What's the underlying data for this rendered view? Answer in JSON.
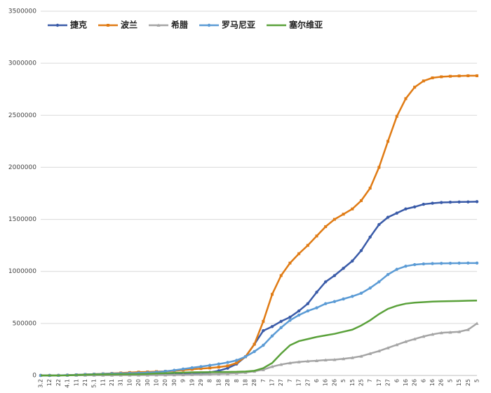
{
  "chart_data": {
    "type": "line",
    "categories": [
      "3.2",
      "12",
      "22",
      "4.1",
      "11",
      "21",
      "5.1",
      "11",
      "21",
      "31",
      "10",
      "20",
      "30",
      "10",
      "20",
      "30",
      "9",
      "19",
      "29",
      "8",
      "18",
      "28",
      "8",
      "18",
      "28",
      "7",
      "17",
      "27",
      "7",
      "17",
      "27",
      "6",
      "16",
      "26",
      "5",
      "15",
      "25",
      "7",
      "17",
      "27",
      "6",
      "16",
      "26",
      "6",
      "16",
      "26",
      "5",
      "15",
      "25",
      "5"
    ],
    "series": [
      {
        "name": "捷克",
        "color": "#3a5ba8",
        "marker": "circle",
        "values": [
          0,
          100,
          1000,
          3300,
          5800,
          7100,
          7700,
          8200,
          8800,
          9300,
          10100,
          10700,
          12000,
          13000,
          14300,
          16300,
          18500,
          20500,
          24000,
          30000,
          45000,
          70000,
          110000,
          180000,
          300000,
          430000,
          470000,
          520000,
          560000,
          620000,
          690000,
          800000,
          900000,
          960000,
          1030000,
          1100000,
          1200000,
          1330000,
          1450000,
          1520000,
          1560000,
          1600000,
          1620000,
          1645000,
          1655000,
          1662000,
          1665000,
          1667000,
          1668000,
          1670000
        ]
      },
      {
        "name": "波兰",
        "color": "#e07b14",
        "marker": "square",
        "values": [
          0,
          50,
          600,
          2500,
          6300,
          10000,
          13000,
          16000,
          20000,
          24000,
          28000,
          32000,
          34000,
          37000,
          40000,
          45000,
          52000,
          59000,
          66000,
          72000,
          80000,
          92000,
          120000,
          180000,
          300000,
          520000,
          780000,
          960000,
          1080000,
          1170000,
          1250000,
          1340000,
          1430000,
          1500000,
          1550000,
          1600000,
          1680000,
          1800000,
          2000000,
          2250000,
          2490000,
          2660000,
          2770000,
          2830000,
          2860000,
          2870000,
          2875000,
          2878000,
          2880000,
          2880000
        ]
      },
      {
        "name": "希腊",
        "color": "#a5a5a5",
        "marker": "triangle",
        "values": [
          0,
          100,
          600,
          1300,
          2100,
          2400,
          2600,
          2700,
          2900,
          3000,
          3100,
          3300,
          3400,
          3800,
          4200,
          4700,
          6200,
          8400,
          10500,
          12700,
          15000,
          17900,
          21700,
          29000,
          40000,
          55000,
          85000,
          105000,
          120000,
          130000,
          137000,
          142000,
          148000,
          152000,
          160000,
          170000,
          185000,
          210000,
          235000,
          265000,
          295000,
          325000,
          350000,
          375000,
          395000,
          410000,
          415000,
          420000,
          440000,
          500000
        ]
      },
      {
        "name": "罗马尼亚",
        "color": "#5b9bd5",
        "marker": "circle",
        "values": [
          0,
          50,
          500,
          2500,
          6000,
          9700,
          12000,
          15000,
          17600,
          19300,
          21400,
          24000,
          27000,
          32000,
          40000,
          50000,
          62000,
          74000,
          85000,
          97000,
          110000,
          125000,
          145000,
          180000,
          230000,
          290000,
          380000,
          460000,
          530000,
          580000,
          620000,
          650000,
          690000,
          710000,
          735000,
          760000,
          790000,
          840000,
          900000,
          970000,
          1020000,
          1050000,
          1065000,
          1072000,
          1075000,
          1077000,
          1078000,
          1079000,
          1080000,
          1080000
        ]
      },
      {
        "name": "塞尔维亚",
        "color": "#5aa13a",
        "marker": "none",
        "values": [
          0,
          0,
          200,
          1000,
          4000,
          6600,
          9000,
          10400,
          11000,
          11400,
          12000,
          12900,
          15000,
          19000,
          22000,
          25000,
          28000,
          30000,
          31000,
          32000,
          33000,
          34000,
          35000,
          38000,
          45000,
          70000,
          120000,
          210000,
          290000,
          330000,
          350000,
          370000,
          385000,
          400000,
          420000,
          440000,
          480000,
          530000,
          590000,
          640000,
          670000,
          690000,
          700000,
          705000,
          710000,
          712000,
          714000,
          716000,
          718000,
          720000
        ]
      }
    ],
    "ylim": [
      0,
      3500000
    ],
    "yticks": [
      0,
      500000,
      1000000,
      1500000,
      2000000,
      2500000,
      3000000,
      3500000
    ],
    "grid": true,
    "legend": "top-left"
  }
}
